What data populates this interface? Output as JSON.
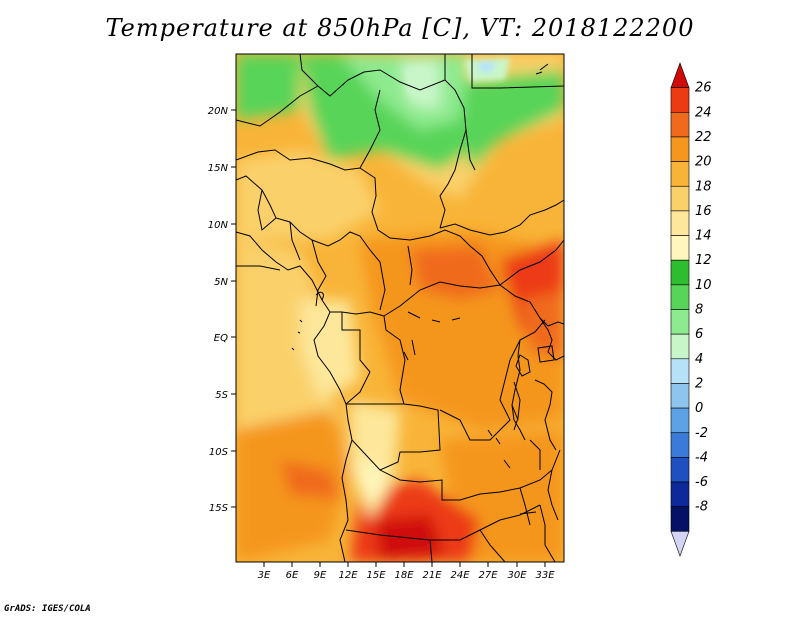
{
  "title": "Temperature at 850hPa [C], VT: 2018122200",
  "credit": "GrADS: IGES/COLA",
  "map": {
    "lat_labels": [
      "20N",
      "15N",
      "10N",
      "5N",
      "EQ",
      "5S",
      "10S",
      "15S"
    ],
    "lon_labels": [
      "3E",
      "6E",
      "9E",
      "12E",
      "15E",
      "18E",
      "21E",
      "24E",
      "27E",
      "30E",
      "33E"
    ]
  },
  "colorbar": {
    "labels": [
      "26",
      "24",
      "22",
      "20",
      "18",
      "16",
      "14",
      "12",
      "10",
      "8",
      "6",
      "4",
      "2",
      "0",
      "-2",
      "-4",
      "-6",
      "-8"
    ],
    "colors": [
      "#cf0a0a",
      "#ec3a12",
      "#f06a1e",
      "#f5961e",
      "#f8b438",
      "#fad06a",
      "#fde79a",
      "#fef6bc",
      "#2ebd2e",
      "#58d458",
      "#8eea8e",
      "#c9f6c9",
      "#b6e2f8",
      "#8ec5ee",
      "#5ea2e6",
      "#3a7ad8",
      "#1e50c0",
      "#0e2a9a",
      "#061066",
      "#d4d4f6"
    ]
  }
}
